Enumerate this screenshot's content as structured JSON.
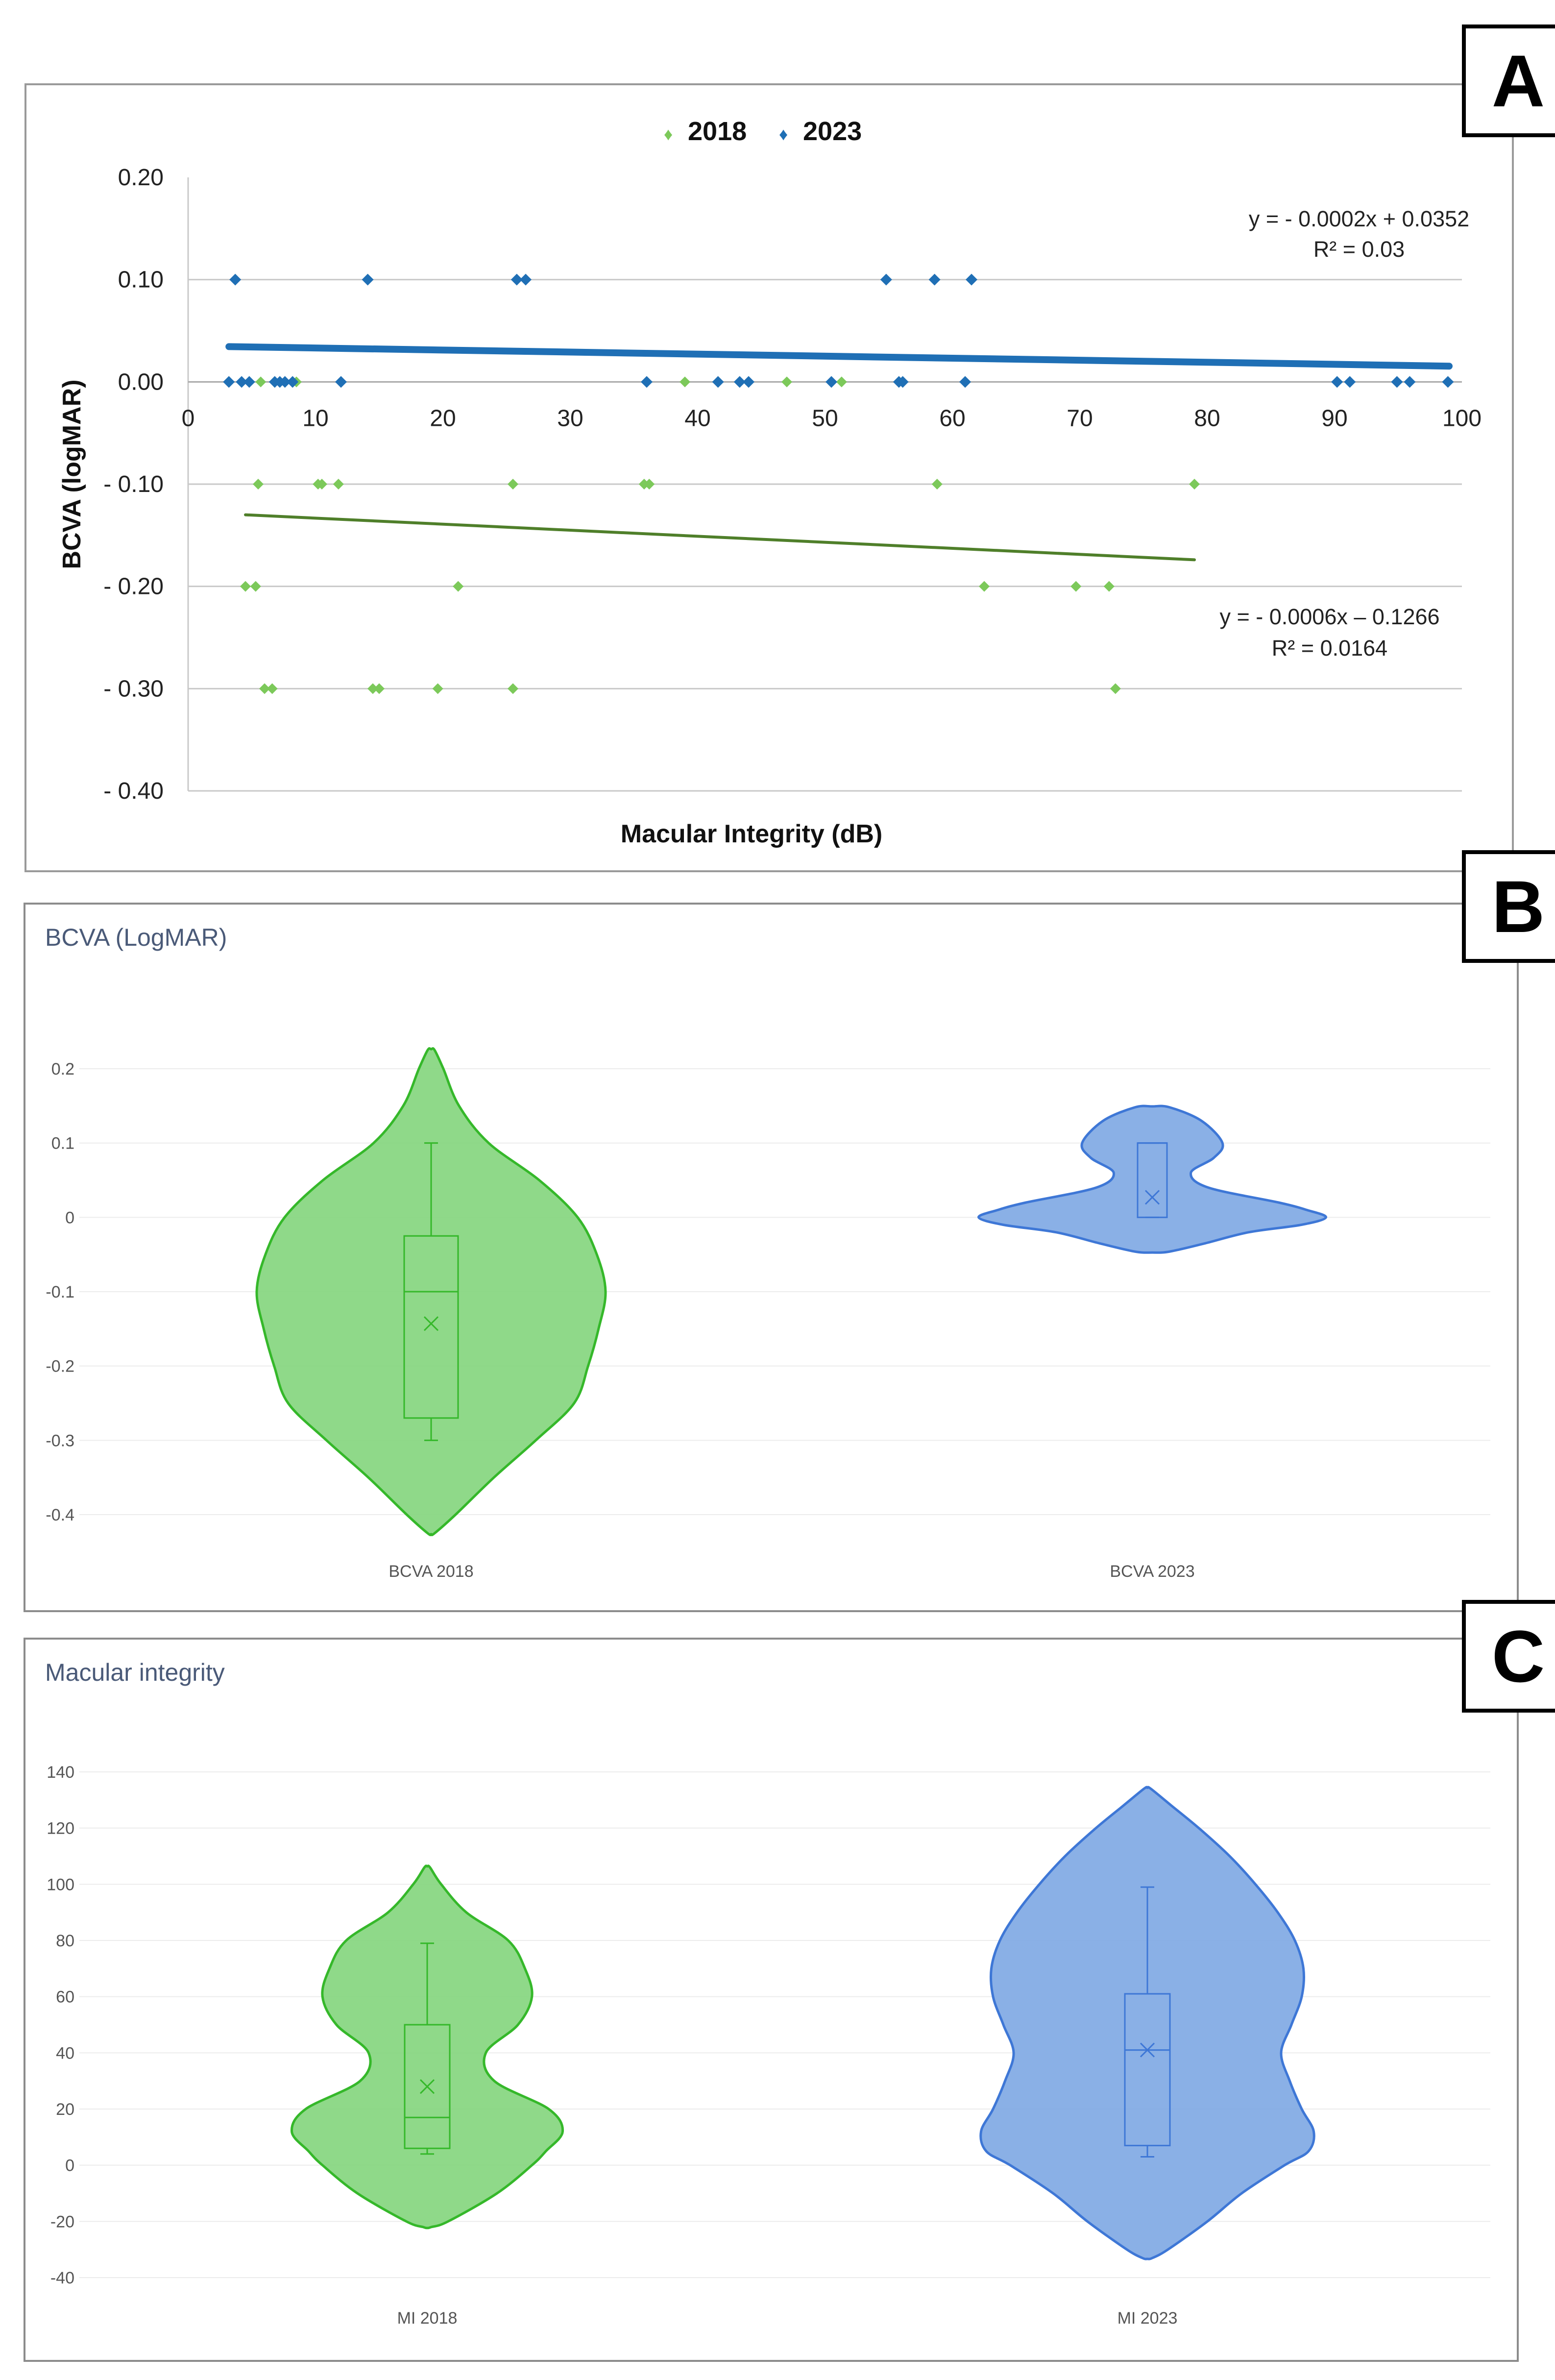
{
  "panel_letters": {
    "a": "A",
    "b": "B",
    "c": "C"
  },
  "colors": {
    "green_points": "#7cc95a",
    "green_line": "#4f7f2a",
    "blue": "#1f6fb5",
    "violin_green_fill": "#86d67f",
    "violin_green_stroke": "#35b82a",
    "violin_blue_fill": "#80a9e4",
    "violin_blue_stroke": "#3e77d6"
  },
  "chart_data": [
    {
      "panel": "A",
      "type": "scatter",
      "title": "",
      "xlabel": "Macular Integrity (dB)",
      "ylabel": "BCVA (logMAR)",
      "xlim": [
        0,
        100
      ],
      "ylim": [
        -0.4,
        0.2
      ],
      "x_ticks": [
        "0",
        "10",
        "20",
        "30",
        "40",
        "50",
        "60",
        "70",
        "80",
        "90",
        "100"
      ],
      "y_ticks": [
        {
          "value": 0.2,
          "label": "0.20"
        },
        {
          "value": 0.1,
          "label": "0.10"
        },
        {
          "value": 0.0,
          "label": "0.00"
        },
        {
          "value": -0.1,
          "label": "- 0.10"
        },
        {
          "value": -0.2,
          "label": "- 0.20"
        },
        {
          "value": -0.3,
          "label": "- 0.30"
        },
        {
          "value": -0.4,
          "label": "- 0.40"
        }
      ],
      "legend": [
        "2018",
        "2023"
      ],
      "legend_marker": "♦",
      "series": [
        {
          "name": "2018",
          "x": [
            5.5,
            10.5,
            10.2,
            11.8,
            25.5,
            35.8,
            36.2,
            58.8,
            79,
            4.5,
            5.3,
            21.2,
            62.5,
            69.7,
            72.3,
            6,
            6.6,
            14.5,
            15,
            19.6,
            25.5,
            72.8,
            5.7,
            8.5,
            39,
            47,
            51.3
          ],
          "y": [
            -0.1,
            -0.1,
            -0.1,
            -0.1,
            -0.1,
            -0.1,
            -0.1,
            -0.1,
            -0.1,
            -0.2,
            -0.2,
            -0.2,
            -0.2,
            -0.2,
            -0.2,
            -0.3,
            -0.3,
            -0.3,
            -0.3,
            -0.3,
            -0.3,
            -0.3,
            0,
            0,
            0,
            0,
            0
          ],
          "trend": {
            "x": [
              4.5,
              79
            ],
            "y": [
              -0.13,
              -0.174
            ],
            "equation": "y = - 0.0006x – 0.1266",
            "r2": "R² = 0.0164"
          }
        },
        {
          "name": "2023",
          "x": [
            3.7,
            14.1,
            25.8,
            26.5,
            54.8,
            58.6,
            61.5,
            3.2,
            4.2,
            4.8,
            6.8,
            7.2,
            7.6,
            8.2,
            12,
            36,
            41.6,
            43.3,
            44,
            50.5,
            55.8,
            56.1,
            61,
            90.2,
            91.2,
            94.9,
            95.9,
            98.9
          ],
          "y": [
            0.1,
            0.1,
            0.1,
            0.1,
            0.1,
            0.1,
            0.1,
            0,
            0,
            0,
            0,
            0,
            0,
            0,
            0,
            0,
            0,
            0,
            0,
            0,
            0,
            0,
            0,
            0,
            0,
            0,
            0,
            0
          ],
          "trend": {
            "x": [
              3.2,
              99
            ],
            "y": [
              0.0345,
              0.0154
            ],
            "equation": "y = - 0.0002x + 0.0352",
            "r2": "R² = 0.03"
          }
        }
      ]
    },
    {
      "panel": "B",
      "type": "violin",
      "title": "BCVA (LogMAR)",
      "ylim": [
        -0.4,
        0.2
      ],
      "y_ticks": [
        {
          "value": 0.2,
          "label": "0.2"
        },
        {
          "value": 0.1,
          "label": "0.1"
        },
        {
          "value": 0,
          "label": "0"
        },
        {
          "value": -0.1,
          "label": "-0.1"
        },
        {
          "value": -0.2,
          "label": "-0.2"
        },
        {
          "value": -0.3,
          "label": "-0.3"
        },
        {
          "value": -0.4,
          "label": "-0.4"
        }
      ],
      "groups": [
        {
          "name": "BCVA 2018",
          "color": "green",
          "box": {
            "whisker_low": -0.3,
            "q1": -0.27,
            "median": -0.1,
            "q3": -0.025,
            "whisker_high": 0.1,
            "mean": -0.143
          },
          "density": [
            [
              0.225,
              0.02
            ],
            [
              0.2,
              0.07
            ],
            [
              0.15,
              0.16
            ],
            [
              0.1,
              0.33
            ],
            [
              0.05,
              0.62
            ],
            [
              0,
              0.84
            ],
            [
              -0.05,
              0.95
            ],
            [
              -0.1,
              1.0
            ],
            [
              -0.15,
              0.96
            ],
            [
              -0.2,
              0.9
            ],
            [
              -0.25,
              0.82
            ],
            [
              -0.3,
              0.6
            ],
            [
              -0.35,
              0.36
            ],
            [
              -0.4,
              0.14
            ],
            [
              -0.425,
              0.02
            ]
          ]
        },
        {
          "name": "BCVA 2023",
          "color": "blue",
          "box": {
            "whisker_low": 0,
            "q1": 0,
            "median": 0.1,
            "q3": 0.1,
            "whisker_high": 0.1,
            "mean": 0.027
          },
          "density": [
            [
              0.148,
              0.1
            ],
            [
              0.13,
              0.28
            ],
            [
              0.1,
              0.4
            ],
            [
              0.08,
              0.35
            ],
            [
              0.06,
              0.22
            ],
            [
              0.04,
              0.32
            ],
            [
              0.02,
              0.72
            ],
            [
              0.01,
              0.88
            ],
            [
              0,
              0.99
            ],
            [
              -0.01,
              0.85
            ],
            [
              -0.02,
              0.55
            ],
            [
              -0.035,
              0.3
            ],
            [
              -0.046,
              0.1
            ]
          ]
        }
      ]
    },
    {
      "panel": "C",
      "type": "violin",
      "title": "Macular integrity",
      "ylim": [
        -40,
        140
      ],
      "y_ticks": [
        {
          "value": 140,
          "label": "140"
        },
        {
          "value": 120,
          "label": "120"
        },
        {
          "value": 100,
          "label": "100"
        },
        {
          "value": 80,
          "label": "80"
        },
        {
          "value": 60,
          "label": "60"
        },
        {
          "value": 40,
          "label": "40"
        },
        {
          "value": 20,
          "label": "20"
        },
        {
          "value": 0,
          "label": "0"
        },
        {
          "value": -20,
          "label": "-20"
        },
        {
          "value": -40,
          "label": "-40"
        }
      ],
      "groups": [
        {
          "name": "MI 2018",
          "color": "green",
          "box": {
            "whisker_low": 4,
            "q1": 6,
            "median": 17,
            "q3": 50,
            "whisker_high": 79,
            "mean": 28
          },
          "density": [
            [
              106,
              0.02
            ],
            [
              100,
              0.1
            ],
            [
              90,
              0.28
            ],
            [
              80,
              0.58
            ],
            [
              70,
              0.7
            ],
            [
              60,
              0.75
            ],
            [
              50,
              0.65
            ],
            [
              40,
              0.42
            ],
            [
              30,
              0.48
            ],
            [
              20,
              0.87
            ],
            [
              12,
              0.97
            ],
            [
              5,
              0.85
            ],
            [
              0,
              0.75
            ],
            [
              -10,
              0.5
            ],
            [
              -20,
              0.15
            ],
            [
              -22,
              0.03
            ]
          ]
        },
        {
          "name": "MI 2023",
          "color": "blue",
          "box": {
            "whisker_low": 3,
            "q1": 7,
            "median": 41,
            "q3": 61,
            "whisker_high": 99,
            "mean": 41
          },
          "density": [
            [
              134,
              0.02
            ],
            [
              128,
              0.14
            ],
            [
              120,
              0.3
            ],
            [
              110,
              0.48
            ],
            [
              100,
              0.63
            ],
            [
              90,
              0.76
            ],
            [
              80,
              0.86
            ],
            [
              70,
              0.91
            ],
            [
              60,
              0.9
            ],
            [
              50,
              0.84
            ],
            [
              40,
              0.78
            ],
            [
              30,
              0.83
            ],
            [
              20,
              0.9
            ],
            [
              12,
              0.97
            ],
            [
              5,
              0.94
            ],
            [
              0,
              0.8
            ],
            [
              -10,
              0.55
            ],
            [
              -20,
              0.35
            ],
            [
              -30,
              0.12
            ],
            [
              -33,
              0.03
            ]
          ]
        }
      ]
    }
  ]
}
